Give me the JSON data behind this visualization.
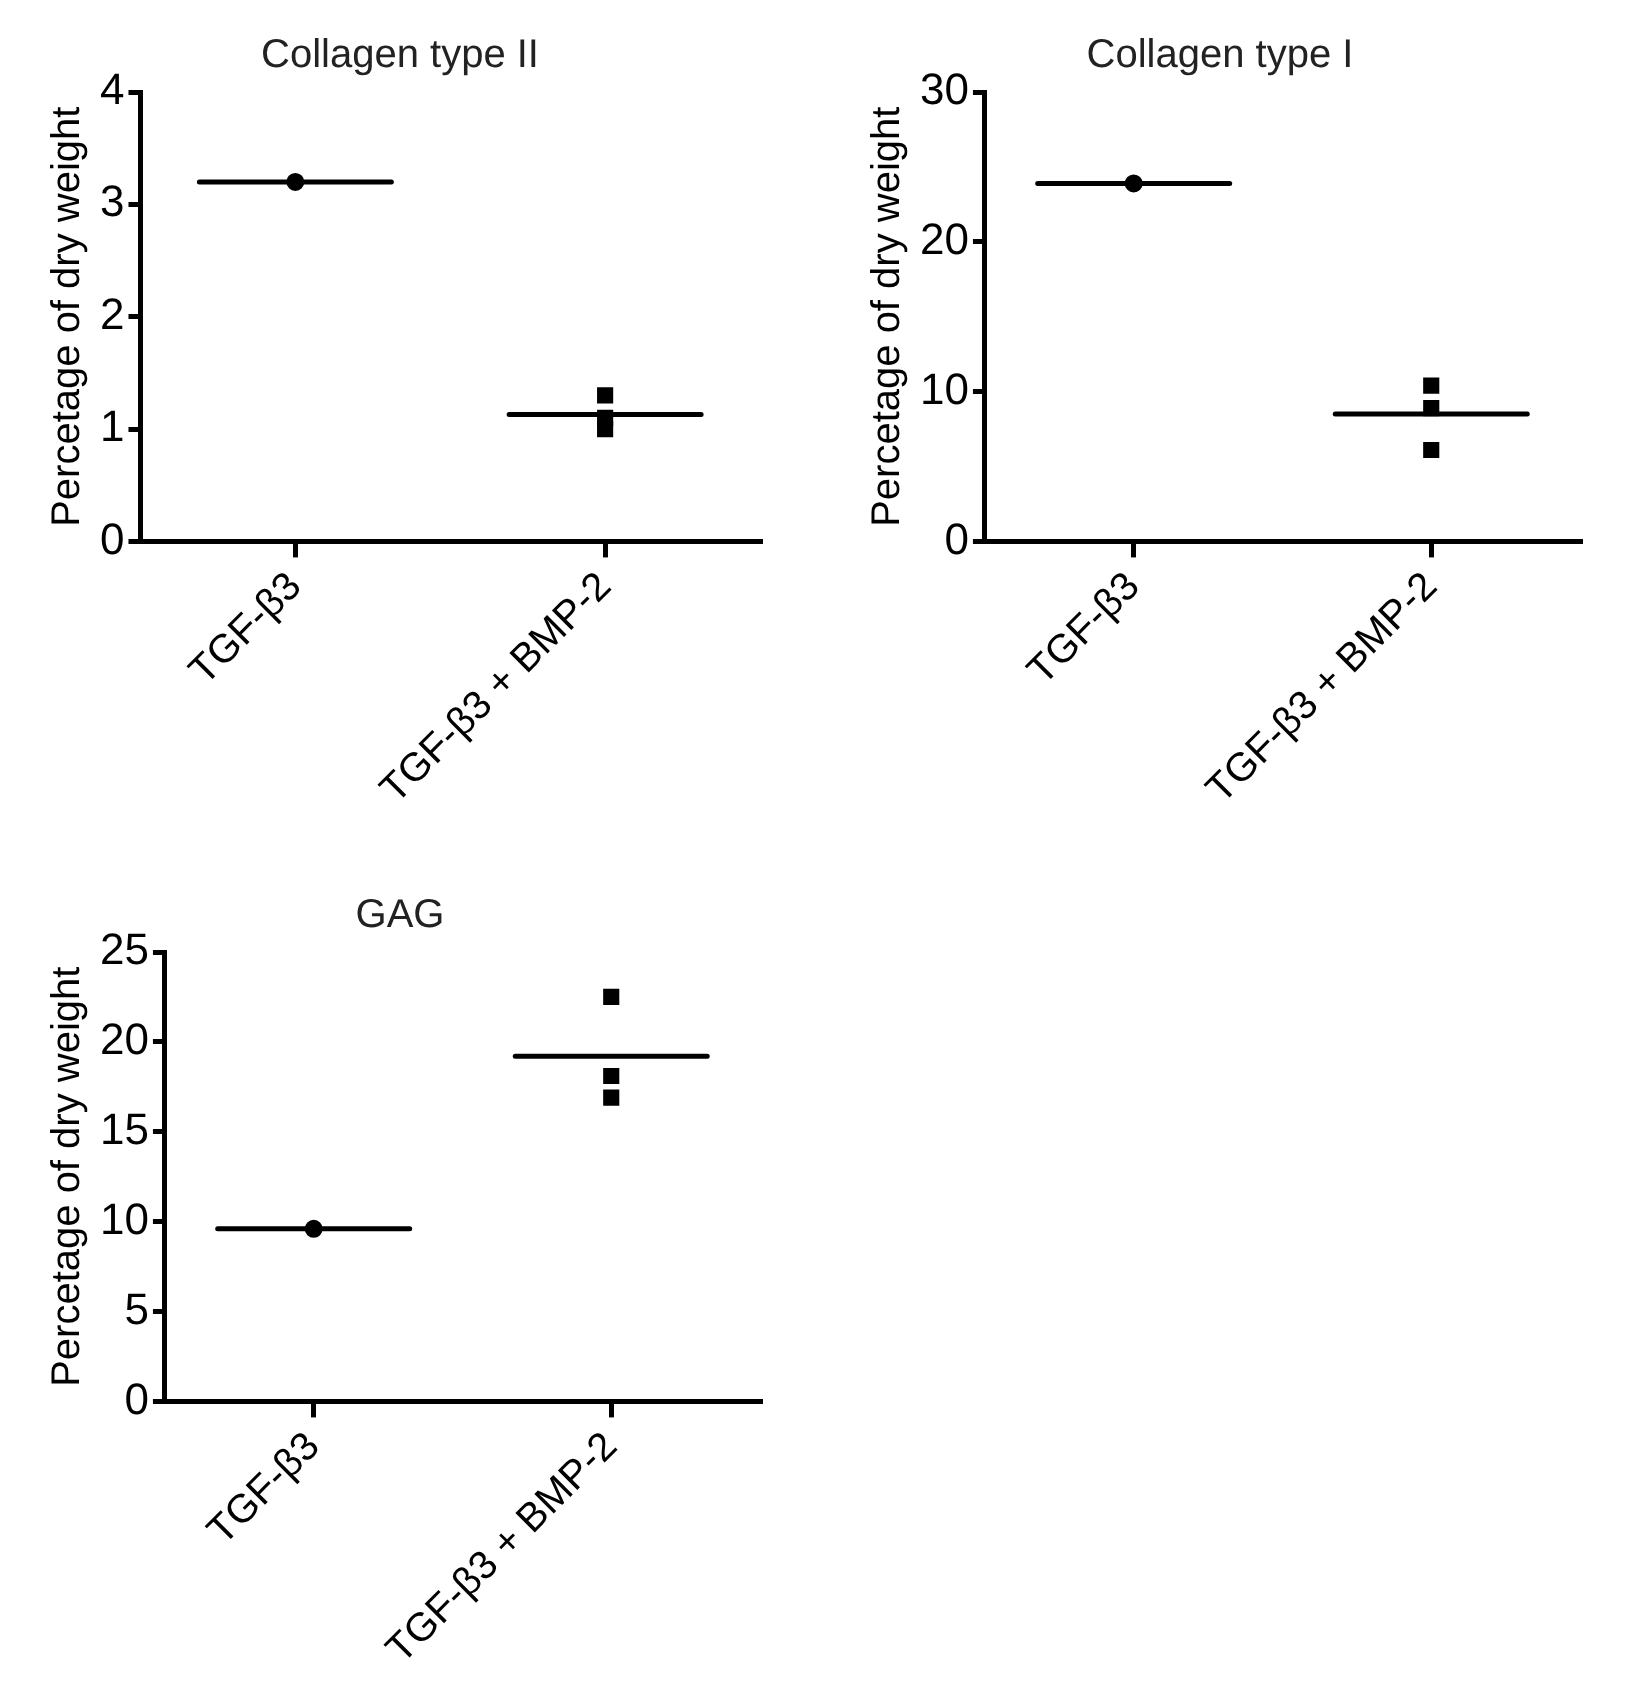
{
  "chart_data": [
    {
      "type": "scatter",
      "title": "Collagen type II",
      "ylabel": "Percetage of dry weight",
      "categories": [
        "TGF-β3",
        "TGF-β3 + BMP-2"
      ],
      "ylim": [
        0,
        4
      ],
      "yticks": [
        0,
        1,
        2,
        3,
        4
      ],
      "grid": false,
      "legend": false,
      "series": [
        {
          "marker": "circle",
          "color": "#000000",
          "x": [
            "TGF-β3"
          ],
          "values": [
            3.2
          ]
        },
        {
          "marker": "square",
          "color": "#000000",
          "x": [
            "TGF-β3 + BMP-2",
            "TGF-β3 + BMP-2",
            "TGF-β3 + BMP-2"
          ],
          "values": [
            1.3,
            1.0,
            1.1
          ]
        },
        {
          "type": "box",
          "color": "#000000",
          "boxes": [
            {
              "low": 3.2,
              "q1": 3.2,
              "median": 3.2,
              "q3": 3.2,
              "high": 3.2
            },
            {
              "low": 1.13,
              "q1": 1.13,
              "median": 1.13,
              "q3": 1.13,
              "high": 1.13
            }
          ]
        }
      ]
    },
    {
      "type": "scatter",
      "title": "Collagen type I",
      "ylabel": "Percetage of dry weight",
      "categories": [
        "TGF-β3",
        "TGF-β3 + BMP-2"
      ],
      "ylim": [
        0,
        30
      ],
      "yticks": [
        0,
        10,
        20,
        30
      ],
      "grid": false,
      "legend": false,
      "series": [
        {
          "marker": "circle",
          "color": "#000000",
          "x": [
            "TGF-β3"
          ],
          "values": [
            23.9
          ]
        },
        {
          "marker": "square",
          "color": "#000000",
          "x": [
            "TGF-β3 + BMP-2",
            "TGF-β3 + BMP-2",
            "TGF-β3 + BMP-2"
          ],
          "values": [
            10.4,
            6.1,
            8.9
          ]
        },
        {
          "type": "box",
          "color": "#000000",
          "boxes": [
            {
              "low": 23.9,
              "q1": 23.9,
              "median": 23.9,
              "q3": 23.9,
              "high": 23.9
            },
            {
              "low": 8.5,
              "q1": 8.5,
              "median": 8.5,
              "q3": 8.5,
              "high": 8.5
            }
          ]
        }
      ]
    },
    {
      "type": "scatter",
      "title": "GAG",
      "ylabel": "Percetage of dry weight",
      "categories": [
        "TGF-β3",
        "TGF-β3 + BMP-2"
      ],
      "ylim": [
        0,
        25
      ],
      "yticks": [
        0,
        5,
        10,
        15,
        20,
        25
      ],
      "grid": false,
      "legend": false,
      "series": [
        {
          "marker": "circle",
          "color": "#000000",
          "x": [
            "TGF-β3"
          ],
          "values": [
            9.6
          ]
        },
        {
          "marker": "square",
          "color": "#000000",
          "x": [
            "TGF-β3 + BMP-2",
            "TGF-β3 + BMP-2",
            "TGF-β3 + BMP-2"
          ],
          "values": [
            22.5,
            16.9,
            18.1
          ]
        },
        {
          "type": "box",
          "color": "#000000",
          "boxes": [
            {
              "low": 9.6,
              "q1": 9.6,
              "median": 9.6,
              "q3": 9.6,
              "high": 9.6
            },
            {
              "low": 19.2,
              "q1": 19.2,
              "median": 19.2,
              "q3": 19.2,
              "high": 19.2
            }
          ]
        }
      ]
    }
  ]
}
